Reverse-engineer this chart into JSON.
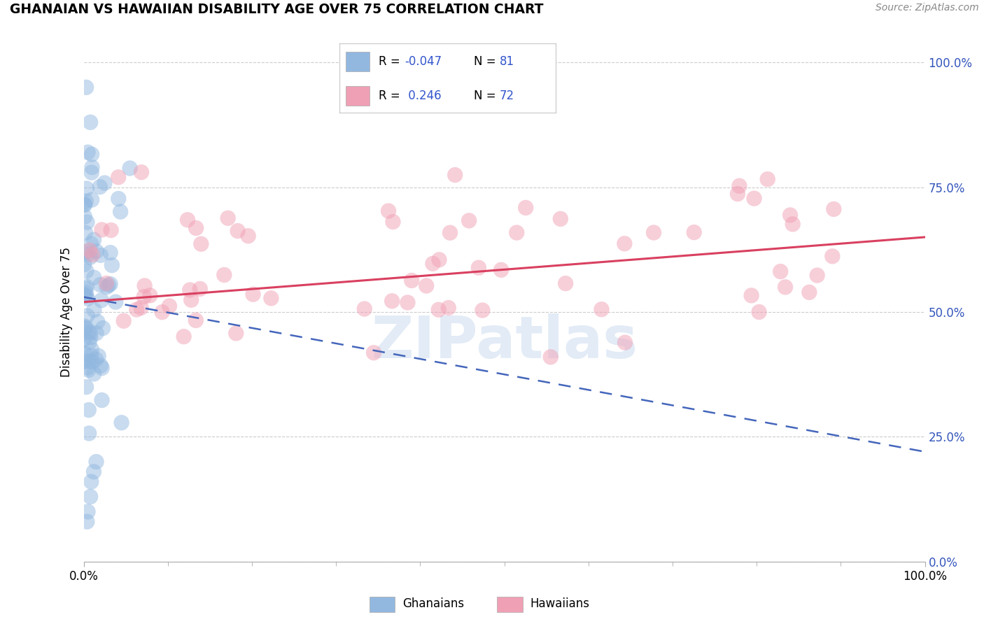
{
  "title": "GHANAIAN VS HAWAIIAN DISABILITY AGE OVER 75 CORRELATION CHART",
  "ylabel": "Disability Age Over 75",
  "source": "Source: ZipAtlas.com",
  "watermark": "ZIPatlas",
  "ghanaian_color": "#92b8e0",
  "hawaiian_color": "#f0a0b5",
  "trend_blue_color": "#4466bb",
  "trend_pink_color": "#d94060",
  "background_color": "#ffffff",
  "grid_color": "#cccccc",
  "xlim": [
    0.0,
    100.0
  ],
  "ylim": [
    0.0,
    100.0
  ],
  "right_ytick_vals": [
    0,
    25,
    50,
    75,
    100
  ],
  "right_ytick_labels": [
    "0.0%",
    "25.0%",
    "50.0%",
    "75.0%",
    "100.0%"
  ],
  "xtick_labels": [
    "0.0%",
    "100.0%"
  ],
  "legend_R1": "R = -0.047",
  "legend_N1": "N = 81",
  "legend_R2": "R =  0.246",
  "legend_N2": "N = 72",
  "blue_trend": [
    0,
    53,
    100,
    22
  ],
  "pink_trend": [
    0,
    52,
    100,
    65
  ],
  "ghanaian_N": 81,
  "hawaiian_N": 72,
  "seed": 99
}
